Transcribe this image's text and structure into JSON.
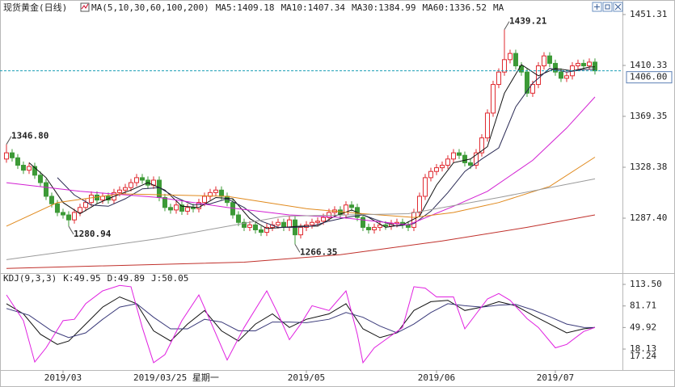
{
  "chart_data": [
    {
      "type": "candlestick",
      "title": "现货黄金(日线)",
      "subtitle": "MA(5,10,30,60,100,200)",
      "up_color": "#e0292f",
      "down_color": "#3c9a37",
      "xlim": [
        -1.14,
        108.86
      ],
      "ylim": [
        1243.2,
        1461.7
      ],
      "yticks": [
        1451.31,
        1410.33,
        1369.35,
        1328.38,
        {
          "value": 1287.4,
          "label": "1287.40"
        }
      ],
      "grid": false,
      "last_price": {
        "value": 1406,
        "label": "1406.00"
      },
      "open": [
        1335,
        1340,
        1336,
        1330,
        1326,
        1329,
        1322,
        1316,
        1305,
        1299,
        1292,
        1290,
        1286,
        1292,
        1296,
        1300,
        1306,
        1302,
        1305,
        1302,
        1308,
        1310,
        1312,
        1316,
        1320,
        1318,
        1314,
        1318,
        1304,
        1296,
        1294,
        1298,
        1293,
        1296,
        1295,
        1300,
        1305,
        1308,
        1310,
        1305,
        1300,
        1290,
        1284,
        1280,
        1282,
        1278,
        1276,
        1280,
        1282,
        1284,
        1280,
        1286,
        1274,
        1280,
        1282,
        1284,
        1285,
        1288,
        1292,
        1294,
        1290,
        1298,
        1296,
        1288,
        1280,
        1278,
        1280,
        1282,
        1281,
        1283,
        1284,
        1282,
        1280,
        1292,
        1305,
        1320,
        1325,
        1328,
        1330,
        1335,
        1340,
        1338,
        1332,
        1330,
        1340,
        1352,
        1372,
        1395,
        1405,
        1415,
        1420,
        1410,
        1405,
        1388,
        1395,
        1410,
        1418,
        1412,
        1405,
        1400,
        1402,
        1410,
        1412,
        1410,
        1413
      ],
      "high": [
        1346.8,
        1343,
        1339,
        1333,
        1332,
        1332,
        1325,
        1319,
        1308,
        1302,
        1295,
        1293,
        1295,
        1299,
        1303,
        1309,
        1309,
        1308,
        1308,
        1311,
        1313,
        1315,
        1319,
        1323,
        1323,
        1321,
        1321,
        1321,
        1307,
        1299,
        1301,
        1301,
        1299,
        1299,
        1303,
        1308,
        1311,
        1313,
        1313,
        1308,
        1303,
        1293,
        1287,
        1285,
        1285,
        1281,
        1283,
        1285,
        1287,
        1287,
        1289,
        1289,
        1283,
        1285,
        1287,
        1288,
        1291,
        1295,
        1297,
        1297,
        1301,
        1301,
        1299,
        1291,
        1283,
        1283,
        1285,
        1285,
        1286,
        1287,
        1287,
        1285,
        1295,
        1308,
        1323,
        1328,
        1331,
        1333,
        1338,
        1343,
        1343,
        1341,
        1335,
        1343,
        1355,
        1375,
        1398,
        1408,
        1439.21,
        1423,
        1423,
        1413,
        1408,
        1398,
        1413,
        1421,
        1421,
        1415,
        1408,
        1405,
        1413,
        1415,
        1415,
        1416,
        1416
      ],
      "low": [
        1332,
        1333,
        1327,
        1323,
        1323,
        1319,
        1313,
        1302,
        1296,
        1289,
        1287,
        1280.94,
        1283,
        1289,
        1293,
        1297,
        1299,
        1299,
        1299,
        1299,
        1305,
        1307,
        1309,
        1313,
        1315,
        1311,
        1311,
        1301,
        1293,
        1291,
        1291,
        1290,
        1290,
        1292,
        1292,
        1297,
        1302,
        1305,
        1302,
        1297,
        1287,
        1281,
        1277,
        1277,
        1275,
        1273,
        1273,
        1277,
        1279,
        1277,
        1277,
        1266.35,
        1271,
        1277,
        1279,
        1281,
        1282,
        1285,
        1289,
        1287,
        1287,
        1293,
        1285,
        1277,
        1275,
        1275,
        1277,
        1278,
        1278,
        1280,
        1279,
        1277,
        1277,
        1289,
        1302,
        1317,
        1322,
        1325,
        1327,
        1332,
        1335,
        1329,
        1327,
        1327,
        1337,
        1349,
        1369,
        1392,
        1402,
        1412,
        1407,
        1402,
        1385,
        1385,
        1392,
        1407,
        1409,
        1402,
        1397,
        1397,
        1399,
        1407,
        1407,
        1407,
        1403
      ],
      "close": [
        1340,
        1336,
        1330,
        1326,
        1329,
        1322,
        1316,
        1305,
        1299,
        1292,
        1290,
        1286,
        1292,
        1296,
        1300,
        1306,
        1302,
        1305,
        1302,
        1308,
        1310,
        1312,
        1316,
        1320,
        1318,
        1314,
        1318,
        1304,
        1296,
        1294,
        1298,
        1293,
        1296,
        1295,
        1300,
        1305,
        1308,
        1310,
        1305,
        1300,
        1290,
        1284,
        1280,
        1282,
        1278,
        1276,
        1280,
        1282,
        1284,
        1280,
        1286,
        1274,
        1280,
        1282,
        1284,
        1285,
        1288,
        1292,
        1294,
        1290,
        1298,
        1296,
        1288,
        1280,
        1278,
        1280,
        1282,
        1281,
        1283,
        1284,
        1282,
        1280,
        1292,
        1305,
        1320,
        1325,
        1328,
        1330,
        1335,
        1340,
        1338,
        1332,
        1330,
        1340,
        1352,
        1372,
        1395,
        1405,
        1415,
        1420,
        1410,
        1405,
        1388,
        1395,
        1410,
        1418,
        1412,
        1405,
        1400,
        1402,
        1410,
        1412,
        1410,
        1413,
        1406
      ],
      "annotations": [
        {
          "x": 0,
          "value": 1346.8,
          "label": "1346.80",
          "color": "#d9363e"
        },
        {
          "x": 11,
          "value": 1280.94,
          "label": "1280.94",
          "color": "#3c9a37"
        },
        {
          "x": 51,
          "value": 1266.35,
          "label": "1266.35",
          "color": "#3c9a37"
        },
        {
          "x": 88,
          "value": 1439.21,
          "label": "1439.21",
          "color": "#d9363e"
        }
      ],
      "series": [
        {
          "name": "MA5:1409.18",
          "color": "#111111",
          "x": [
            4,
            7,
            10,
            13,
            16,
            19,
            22,
            25,
            28,
            31,
            34,
            37,
            40,
            43,
            46,
            49,
            52,
            55,
            58,
            61,
            64,
            67,
            70,
            73,
            76,
            79,
            82,
            85,
            88,
            91,
            94,
            97,
            100,
            103,
            104
          ],
          "values": [
            1332,
            1320,
            1300,
            1291,
            1299,
            1305,
            1310,
            1316,
            1310,
            1297,
            1296,
            1304,
            1303,
            1287,
            1279,
            1280,
            1281,
            1281,
            1289,
            1294,
            1288,
            1280,
            1282,
            1289,
            1314,
            1332,
            1335,
            1345,
            1388,
            1411,
            1402,
            1408,
            1406,
            1409,
            1409.18
          ]
        },
        {
          "name": "MA10:1407.34",
          "color": "#2b2b55",
          "x": [
            9,
            12,
            15,
            18,
            21,
            24,
            27,
            30,
            33,
            36,
            39,
            42,
            45,
            48,
            51,
            54,
            57,
            60,
            63,
            66,
            69,
            72,
            75,
            78,
            81,
            84,
            87,
            90,
            93,
            96,
            99,
            102,
            104
          ],
          "values": [
            1320,
            1306,
            1298,
            1297,
            1303,
            1311,
            1312,
            1304,
            1298,
            1299,
            1303,
            1296,
            1285,
            1280,
            1280,
            1281,
            1285,
            1288,
            1290,
            1285,
            1281,
            1283,
            1293,
            1308,
            1325,
            1335,
            1344,
            1377,
            1396,
            1408,
            1405,
            1407,
            1407.34
          ]
        },
        {
          "name": "MA30:1384.99",
          "color": "#d21fd2",
          "x": [
            0,
            13,
            27,
            39,
            50,
            59,
            67,
            71,
            79,
            85,
            93,
            99,
            104
          ],
          "values": [
            1316,
            1309,
            1304,
            1296,
            1290,
            1288,
            1284,
            1282,
            1297,
            1309,
            1334,
            1360,
            1384.99
          ]
        },
        {
          "name": "MA60:1336.52",
          "color": "#e0891c",
          "x": [
            0,
            9,
            20,
            39,
            53,
            63,
            72,
            79,
            87,
            96,
            104
          ],
          "values": [
            1281,
            1300,
            1307,
            1305,
            1295,
            1291,
            1288,
            1292,
            1300,
            1313,
            1336.52
          ]
        },
        {
          "name": "MA",
          "color": "#9a9a9a",
          "x": [
            0,
            27,
            49,
            71,
            87,
            104
          ],
          "values": [
            1254,
            1271,
            1289,
            1291,
            1304,
            1319
          ]
        },
        {
          "color": "#c0302b",
          "x": [
            0,
            42,
            59,
            77,
            92,
            104
          ],
          "values": [
            1247,
            1252,
            1258,
            1269,
            1280,
            1290
          ]
        }
      ]
    },
    {
      "type": "line",
      "title": "KDJ(9,3,3)",
      "xlim": [
        -1.14,
        108.86
      ],
      "ylim": [
        -12.8,
        127.8
      ],
      "yticks": [
        {
          "value": 113.5,
          "label": "113.50"
        },
        81.71,
        49.92,
        18.13
      ],
      "cursor_value": 17.24,
      "xticks": [
        {
          "value": 10,
          "label": "2019/03"
        },
        {
          "value": 53,
          "label": "2019/05"
        },
        {
          "value": 76,
          "label": "2019/06"
        },
        {
          "value": 97,
          "label": "2019/07"
        }
      ],
      "crosshair": {
        "x": 30,
        "label": "2019/03/25 星期一"
      },
      "series": [
        {
          "name": "K:49.95",
          "color": "#111111",
          "x": [
            0,
            3,
            6,
            9,
            11,
            14,
            17,
            20,
            23,
            26,
            29,
            32,
            35,
            38,
            41,
            44,
            47,
            50,
            53,
            57,
            60,
            63,
            66,
            69,
            72,
            75,
            78,
            81,
            84,
            87,
            90,
            93,
            96,
            99,
            102,
            104
          ],
          "values": [
            85,
            70,
            40,
            25,
            30,
            55,
            80,
            95,
            85,
            45,
            30,
            55,
            75,
            45,
            30,
            55,
            70,
            50,
            62,
            70,
            85,
            48,
            35,
            42,
            75,
            88,
            90,
            75,
            80,
            88,
            82,
            68,
            55,
            42,
            48,
            49.95
          ]
        },
        {
          "name": "D:49.89",
          "color": "#3a3a7a",
          "x": [
            0,
            4,
            8,
            11,
            14,
            17,
            20,
            23,
            26,
            29,
            32,
            35,
            38,
            41,
            44,
            47,
            50,
            53,
            57,
            60,
            63,
            66,
            69,
            72,
            75,
            78,
            81,
            84,
            87,
            90,
            93,
            96,
            99,
            102,
            104
          ],
          "values": [
            78,
            68,
            45,
            35,
            42,
            62,
            80,
            85,
            65,
            48,
            48,
            62,
            58,
            45,
            45,
            58,
            58,
            57,
            62,
            72,
            65,
            52,
            42,
            55,
            72,
            85,
            82,
            80,
            83,
            84,
            76,
            66,
            55,
            50,
            49.89
          ]
        },
        {
          "name": "J:50.05",
          "color": "#e020e0",
          "x": [
            0,
            3,
            5,
            7,
            10,
            12,
            14,
            17,
            20,
            22,
            24,
            26,
            28,
            31,
            34,
            36,
            39,
            42,
            46,
            48,
            50,
            52,
            54,
            57,
            60,
            62,
            63,
            65,
            67,
            70,
            72,
            74,
            76,
            79,
            81,
            83,
            85,
            87,
            89,
            92,
            94,
            97,
            99,
            102,
            104
          ],
          "values": [
            98,
            60,
            -1,
            20,
            60,
            62,
            85,
            104,
            112,
            110,
            50,
            -2,
            10,
            60,
            98,
            60,
            2,
            50,
            104,
            70,
            32,
            55,
            82,
            75,
            104,
            40,
            -2,
            20,
            32,
            50,
            110,
            108,
            95,
            95,
            48,
            70,
            92,
            100,
            90,
            63,
            50,
            20,
            25,
            44,
            50.05
          ]
        }
      ]
    }
  ]
}
